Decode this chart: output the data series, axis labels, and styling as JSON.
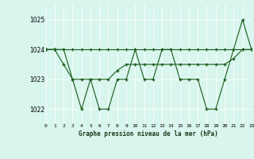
{
  "title": "Graphe pression niveau de la mer (hPa)",
  "bg_color": "#d8f5ee",
  "line_color": "#1a5c1a",
  "grid_color": "#b8e8d8",
  "xlim": [
    0,
    23
  ],
  "ylim": [
    1021.5,
    1025.5
  ],
  "yticks": [
    1022,
    1023,
    1024,
    1025
  ],
  "xticks": [
    0,
    1,
    2,
    3,
    4,
    5,
    6,
    7,
    8,
    9,
    10,
    11,
    12,
    13,
    14,
    15,
    16,
    17,
    18,
    19,
    20,
    21,
    22,
    23
  ],
  "series1": [
    1024,
    1024,
    1024,
    1023,
    1022,
    1023,
    1022,
    1022,
    1023,
    1023,
    1024,
    1023,
    1023,
    1024,
    1024,
    1023,
    1023,
    1023,
    1022,
    1022,
    1023,
    1024,
    1025,
    1024
  ],
  "series2": [
    1024,
    1024,
    1024,
    1024,
    1024,
    1024,
    1024,
    1024,
    1024,
    1024,
    1024,
    1024,
    1024,
    1024,
    1024,
    1024,
    1024,
    1024,
    1024,
    1024,
    1024,
    1024,
    1024,
    1024
  ],
  "series3": [
    1024,
    1024,
    1023.5,
    1023,
    1023,
    1023,
    1023,
    1023,
    1023.3,
    1023.5,
    1023.5,
    1023.5,
    1023.5,
    1023.5,
    1023.5,
    1023.5,
    1023.5,
    1023.5,
    1023.5,
    1023.5,
    1023.5,
    1023.7,
    1024,
    1024
  ]
}
